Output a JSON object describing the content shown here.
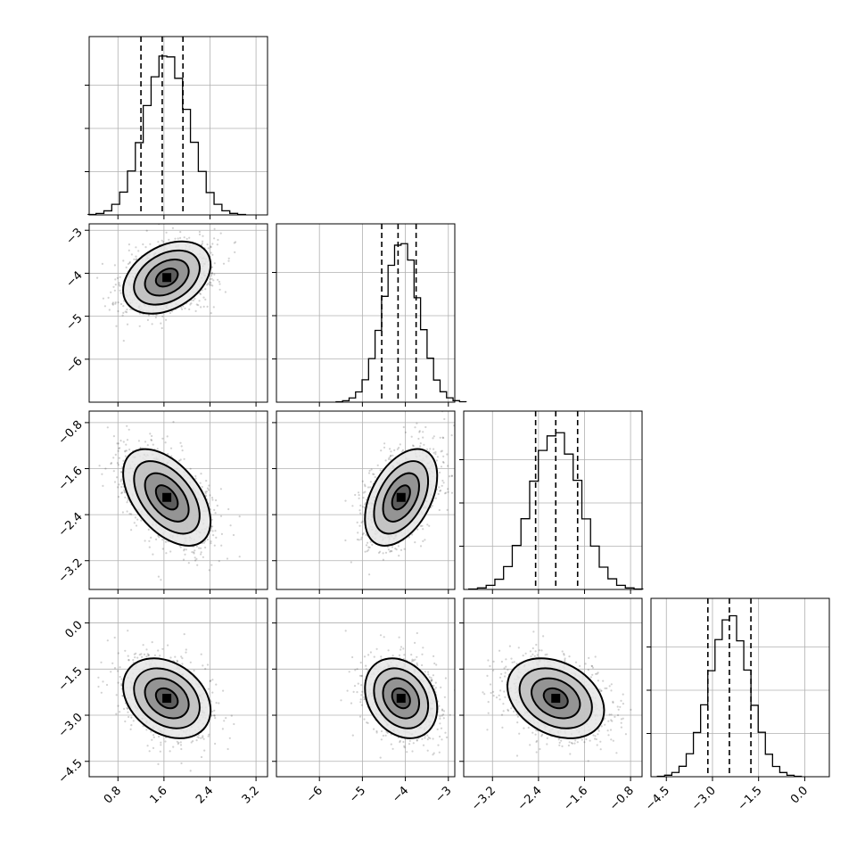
{
  "chart_data": {
    "type": "corner",
    "title": "",
    "grid": true,
    "parameters": [
      {
        "index": 0,
        "range": [
          0.3,
          3.4
        ],
        "ticks": [
          0.8,
          1.6,
          2.4,
          3.2
        ],
        "tick_labels": [
          "0.8",
          "1.6",
          "2.4",
          "3.2"
        ],
        "mean": 1.65,
        "sd": 0.38,
        "quantiles": [
          1.2,
          1.57,
          1.93
        ]
      },
      {
        "index": 1,
        "range": [
          -7.0,
          -2.85
        ],
        "ticks": [
          -6,
          -5,
          -4,
          -3
        ],
        "tick_labels": [
          "−6",
          "−5",
          "−4",
          "−3"
        ],
        "mean": -4.1,
        "sd": 0.42,
        "quantiles": [
          -4.55,
          -4.17,
          -3.75
        ]
      },
      {
        "index": 2,
        "range": [
          -3.7,
          -0.6
        ],
        "ticks": [
          -3.2,
          -2.4,
          -1.6,
          -0.8
        ],
        "tick_labels": [
          "−3.2",
          "−2.4",
          "−1.6",
          "−0.8"
        ],
        "mean": -2.1,
        "sd": 0.42,
        "quantiles": [
          -2.45,
          -2.1,
          -1.72
        ]
      },
      {
        "index": 3,
        "range": [
          -5.0,
          0.8
        ],
        "ticks": [
          -4.5,
          -3.0,
          -1.5,
          0.0
        ],
        "tick_labels": [
          "−4.5",
          "−3.0",
          "−1.5",
          "0.0"
        ],
        "mean": -2.45,
        "sd": 0.65,
        "quantiles": [
          -3.15,
          -2.45,
          -1.75
        ]
      }
    ],
    "correlations": {
      "1-0": 0.35,
      "2-0": -0.5,
      "2-1": 0.45,
      "3-0": -0.3,
      "3-1": -0.25,
      "3-2": -0.3
    },
    "contour_levels_sigma": [
      0.5,
      1.0,
      1.5,
      2.0
    ],
    "histogram_bins": 20
  }
}
